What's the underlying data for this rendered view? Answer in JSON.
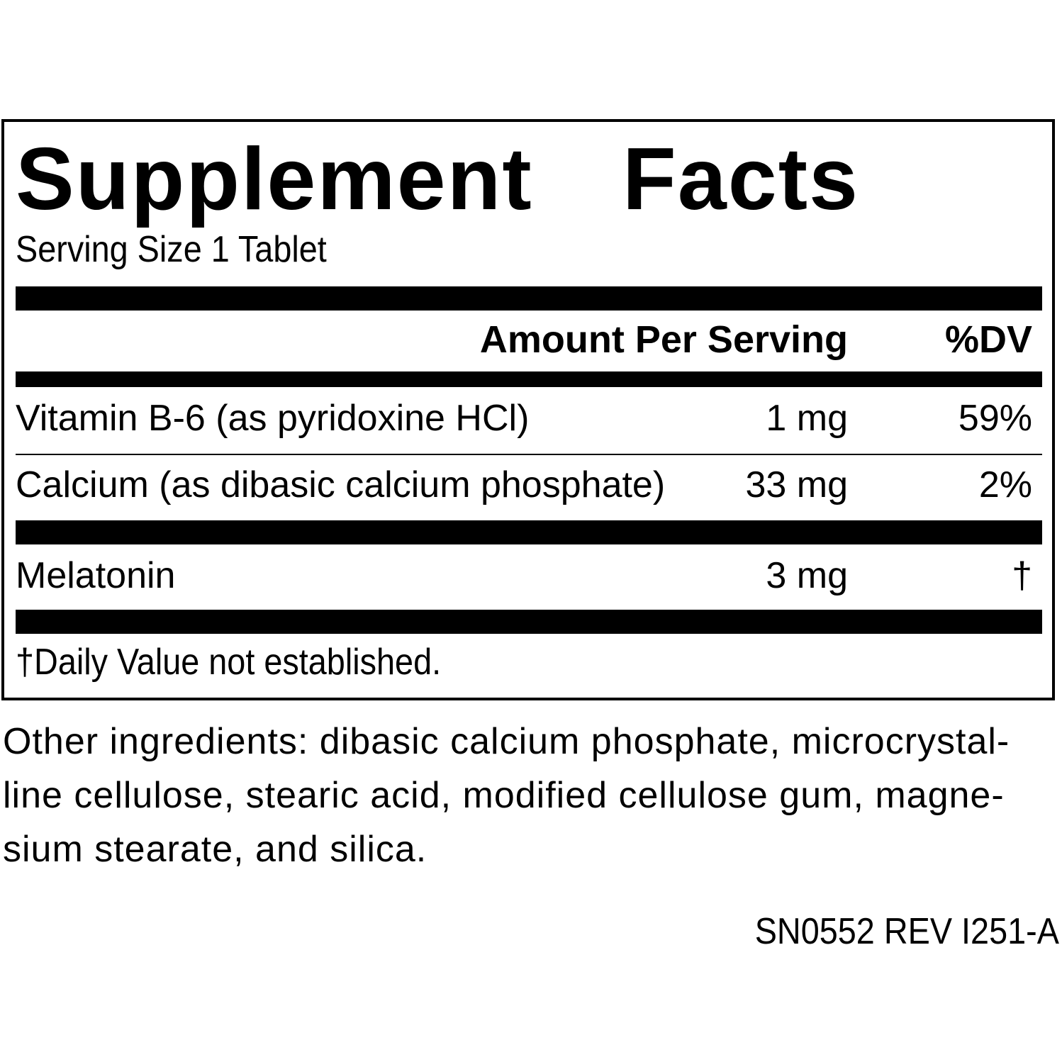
{
  "panel": {
    "title": "Supplement Facts",
    "serving": "Serving Size 1 Tablet",
    "header": {
      "amount": "Amount Per Serving",
      "dv": "%DV"
    },
    "rows": [
      [
        "Vitamin B-6 (as pyridoxine HCl)",
        "1 mg",
        "59%"
      ],
      [
        "Calcium (as dibasic calcium phosphate)",
        "33 mg",
        "2%"
      ],
      [
        "Melatonin",
        "3 mg",
        "†"
      ]
    ],
    "footnote": "†Daily Value not established."
  },
  "ingredients": "Other ingredients: dibasic calcium phosphate, microcrystal-line cellulose, stearic acid, modified cellulose gum, magne-sium stearate, and silica.",
  "code": "SN0552 REV I251-A"
}
